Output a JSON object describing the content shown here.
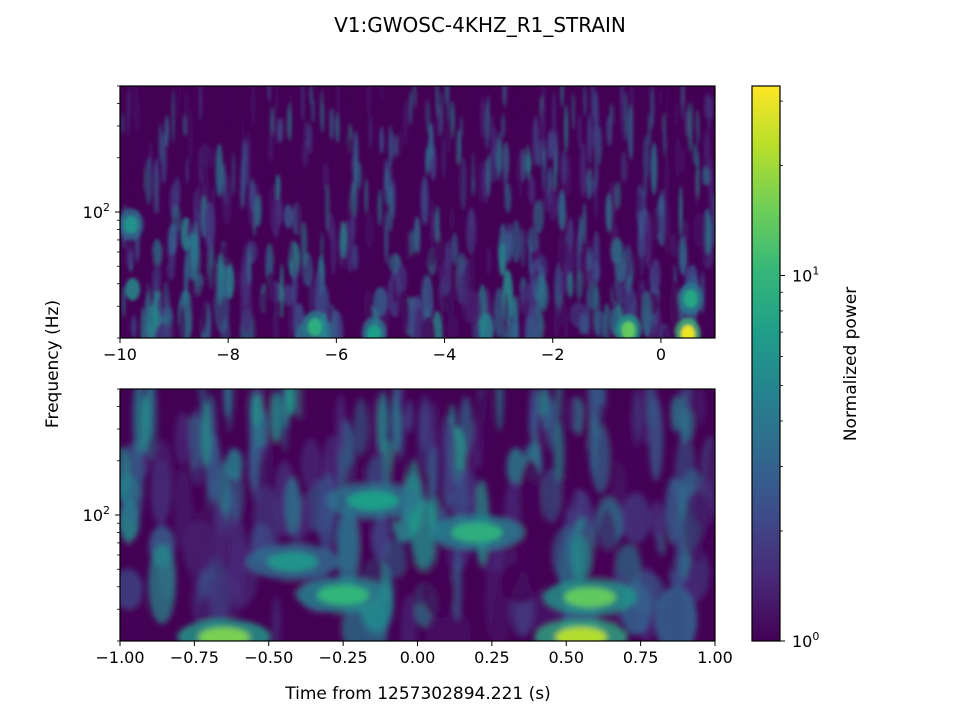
{
  "figure": {
    "title": "V1:GWOSC-4KHZ_R1_STRAIN",
    "ylabel": "Frequency (Hz)",
    "xlabel": "Time from 1257302894.221 (s)",
    "colorbar_label": "Normalized power"
  },
  "colormap": {
    "name": "viridis",
    "stops": [
      "#440154",
      "#482878",
      "#3e4a89",
      "#31688e",
      "#26828e",
      "#1f9e89",
      "#35b779",
      "#6ece58",
      "#b5de2b",
      "#fde725"
    ]
  },
  "chart_data": [
    {
      "type": "heatmap",
      "title": "",
      "xlabel": "",
      "ylabel": "Frequency (Hz)",
      "xlim": [
        -10,
        1
      ],
      "ylim": [
        20,
        500
      ],
      "yscale": "log",
      "x_ticks": [
        -10,
        -8,
        -6,
        -4,
        -2,
        0
      ],
      "x_tick_labels": [
        "−10",
        "−8",
        "−6",
        "−4",
        "−2",
        "0"
      ],
      "y_tick_labels": [
        {
          "base": "10",
          "exp": "2",
          "value": 100
        }
      ],
      "hotspots": [
        {
          "t": 0.5,
          "f": 21,
          "power": 30
        },
        {
          "t": -0.6,
          "f": 22,
          "power": 14
        },
        {
          "t": -6.4,
          "f": 23,
          "power": 9
        },
        {
          "t": 0.55,
          "f": 33,
          "power": 8
        },
        {
          "t": -5.3,
          "f": 21,
          "power": 7
        },
        {
          "t": -9.8,
          "f": 85,
          "power": 6
        }
      ]
    },
    {
      "type": "heatmap",
      "title": "",
      "xlabel": "Time from 1257302894.221 (s)",
      "ylabel": "",
      "xlim": [
        -1,
        1
      ],
      "ylim": [
        20,
        500
      ],
      "yscale": "log",
      "x_ticks": [
        -1,
        -0.75,
        -0.5,
        -0.25,
        0,
        0.25,
        0.5,
        0.75,
        1
      ],
      "x_tick_labels": [
        "−1.00",
        "−0.75",
        "−0.50",
        "−0.25",
        "0.00",
        "0.25",
        "0.50",
        "0.75",
        "1.00"
      ],
      "y_tick_labels": [
        {
          "base": "10",
          "exp": "2",
          "value": 100
        }
      ],
      "hotspots": [
        {
          "t": 0.55,
          "f": 21,
          "power": 22
        },
        {
          "t": -0.65,
          "f": 21,
          "power": 16
        },
        {
          "t": 0.58,
          "f": 35,
          "power": 14
        },
        {
          "t": -0.25,
          "f": 36,
          "power": 10
        },
        {
          "t": 0.2,
          "f": 80,
          "power": 9
        },
        {
          "t": -0.15,
          "f": 120,
          "power": 7
        },
        {
          "t": -0.42,
          "f": 55,
          "power": 6
        }
      ]
    }
  ],
  "colorbar": {
    "scale": "log",
    "range": [
      1,
      33
    ],
    "ticks": [
      {
        "base": "10",
        "exp": "0",
        "value": 1
      },
      {
        "base": "10",
        "exp": "1",
        "value": 10
      }
    ]
  }
}
